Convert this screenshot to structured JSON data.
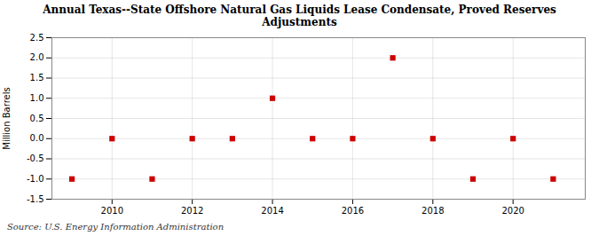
{
  "chart_data": {
    "type": "scatter",
    "title": "Annual Texas--State Offshore Natural Gas Liquids Lease Condensate, Proved Reserves\nAdjustments",
    "ylabel": "Million Barrels",
    "source": "Source: U.S. Energy Information Administration",
    "x": [
      2009,
      2010,
      2011,
      2012,
      2013,
      2014,
      2015,
      2016,
      2017,
      2018,
      2019,
      2020,
      2021
    ],
    "values": [
      -1,
      0,
      -1,
      0,
      0,
      1,
      0,
      0,
      2,
      0,
      -1,
      0,
      -1
    ],
    "color": "#cc0000",
    "marker": "square",
    "xlim": [
      2008.5,
      2021.8
    ],
    "xticks": [
      2010,
      2012,
      2014,
      2016,
      2018,
      2020
    ],
    "ylim": [
      -1.5,
      2.5
    ],
    "yticks": [
      -1.5,
      {
        "value": -1.0,
        "label": "-1.0"
      },
      -0.5,
      {
        "value": 0.0,
        "label": "0.0"
      },
      0.5,
      {
        "value": 1.0,
        "label": "1.0"
      },
      1.5,
      {
        "value": 2.0,
        "label": "2.0"
      },
      2.5
    ],
    "grid": true
  }
}
